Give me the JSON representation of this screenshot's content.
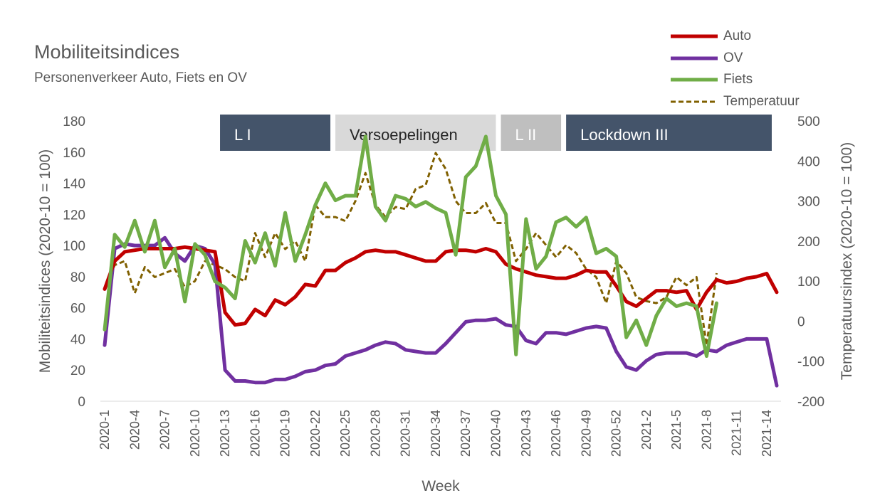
{
  "colors": {
    "auto": "#c00000",
    "ov": "#7030a0",
    "fiets": "#70ad47",
    "temperatuur": "#806000",
    "band_dark": "#44546a",
    "band_light": "#d9d9d9",
    "band_mid": "#bfbfbf",
    "axis_text": "#595959"
  },
  "chart_data": {
    "type": "line",
    "title": "Mobiliteitsindices",
    "subtitle": "Personenverkeer  Auto, Fiets en OV",
    "xlabel": "Week",
    "ylabel": "Mobiliteitsindices (2020-10 = 100)",
    "y2label": "Temperatuursindex (2020-10 = 100)",
    "ylim": [
      0,
      180
    ],
    "y2lim": [
      -200,
      500
    ],
    "yticks": [
      0,
      20,
      40,
      60,
      80,
      100,
      120,
      140,
      160,
      180
    ],
    "y2ticks": [
      -200,
      -100,
      0,
      100,
      200,
      300,
      400,
      500
    ],
    "x_tick_labels": [
      "2020-1",
      "2020-4",
      "2020-7",
      "2020-10",
      "2020-13",
      "2020-16",
      "2020-19",
      "2020-22",
      "2020-25",
      "2020-28",
      "2020-31",
      "2020-34",
      "2020-37",
      "2020-40",
      "2020-43",
      "2020-46",
      "2020-49",
      "2020-52",
      "2021-2",
      "2021-5",
      "2021-8",
      "2021-11",
      "2021-14"
    ],
    "grid": false,
    "legend_position": "top-right",
    "periods": [
      {
        "label": "L I",
        "start": 11.5,
        "end": 22.5,
        "style": "dark"
      },
      {
        "label": "Versoepelingen",
        "start": 23,
        "end": 39,
        "style": "light"
      },
      {
        "label": "L II",
        "start": 39.5,
        "end": 45.5,
        "style": "mid"
      },
      {
        "label": "Lockdown III",
        "start": 46,
        "end": 66.5,
        "style": "dark"
      }
    ],
    "series": [
      {
        "name": "Auto",
        "axis": "left",
        "style": "solid",
        "color": "#c00000",
        "values": [
          72,
          90,
          96,
          97,
          98,
          98,
          98,
          98,
          99,
          98,
          97,
          96,
          57,
          49,
          50,
          59,
          55,
          65,
          62,
          67,
          75,
          74,
          84,
          84,
          89,
          92,
          96,
          97,
          96,
          96,
          94,
          92,
          90,
          90,
          96,
          97,
          97,
          96,
          98,
          96,
          88,
          85,
          83,
          81,
          80,
          79,
          79,
          81,
          84,
          83,
          83,
          74,
          64,
          61,
          66,
          71,
          71,
          70,
          71,
          59,
          70,
          78,
          76,
          77,
          79,
          80,
          82,
          70
        ]
      },
      {
        "name": "OV",
        "axis": "left",
        "style": "solid",
        "color": "#7030a0",
        "values": [
          36,
          98,
          101,
          100,
          100,
          100,
          105,
          95,
          90,
          100,
          98,
          88,
          20,
          13,
          13,
          12,
          12,
          14,
          14,
          16,
          19,
          20,
          23,
          24,
          29,
          31,
          33,
          36,
          38,
          37,
          33,
          32,
          31,
          31,
          37,
          44,
          51,
          52,
          52,
          53,
          49,
          48,
          39,
          37,
          44,
          44,
          43,
          45,
          47,
          48,
          47,
          32,
          22,
          20,
          26,
          30,
          31,
          31,
          31,
          29,
          33,
          32,
          36,
          38,
          40,
          40,
          40,
          10
        ]
      },
      {
        "name": "Fiets",
        "axis": "left",
        "style": "solid",
        "color": "#70ad47",
        "values": [
          46,
          107,
          99,
          116,
          96,
          116,
          86,
          98,
          64,
          101,
          94,
          77,
          73,
          66,
          103,
          89,
          108,
          87,
          121,
          90,
          107,
          126,
          140,
          129,
          132,
          132,
          170,
          125,
          116,
          132,
          130,
          125,
          128,
          124,
          121,
          94,
          144,
          151,
          170,
          132,
          120,
          30,
          117,
          85,
          93,
          115,
          118,
          112,
          118,
          95,
          98,
          93,
          41,
          52,
          36,
          55,
          66,
          61,
          63,
          61,
          29,
          63
        ]
      },
      {
        "name": "Temperatuur",
        "axis": "right",
        "style": "dashed",
        "color": "#806000",
        "values": [
          80,
          140,
          150,
          70,
          135,
          110,
          120,
          130,
          85,
          100,
          150,
          140,
          130,
          110,
          100,
          220,
          160,
          220,
          180,
          200,
          150,
          290,
          260,
          260,
          250,
          300,
          370,
          290,
          260,
          285,
          280,
          330,
          340,
          420,
          380,
          300,
          270,
          270,
          295,
          245,
          245,
          150,
          180,
          220,
          190,
          160,
          190,
          170,
          130,
          110,
          45,
          150,
          120,
          60,
          50,
          45,
          60,
          110,
          90,
          110,
          -60,
          120
        ]
      }
    ]
  }
}
